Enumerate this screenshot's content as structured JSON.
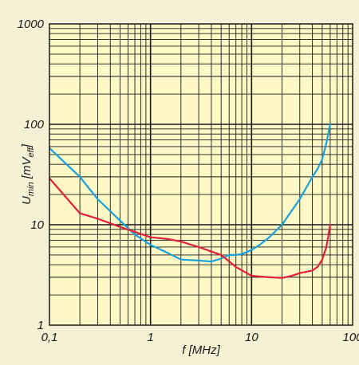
{
  "chart_data": {
    "type": "line",
    "title": "",
    "xlabel": "f [MHz]",
    "ylabel_main": "U",
    "ylabel_sub": "min",
    "ylabel_unit_open": " [mV",
    "ylabel_unit_sub": "eff",
    "ylabel_unit_close": "]",
    "x_scale": "log",
    "y_scale": "log",
    "xlim": [
      0.1,
      100
    ],
    "ylim": [
      1,
      1000
    ],
    "grid": true,
    "x_ticks": [
      {
        "value": 0.1,
        "label": "0,1"
      },
      {
        "value": 1,
        "label": "1"
      },
      {
        "value": 10,
        "label": "10"
      },
      {
        "value": 100,
        "label": "100"
      }
    ],
    "y_ticks": [
      {
        "value": 1,
        "label": "1"
      },
      {
        "value": 10,
        "label": "10"
      },
      {
        "value": 100,
        "label": "100"
      },
      {
        "value": 1000,
        "label": "1000"
      }
    ],
    "series": [
      {
        "color": "#1aa0dd",
        "x": [
          0.1,
          0.2,
          0.3,
          0.5,
          0.7,
          1,
          1.5,
          2,
          3,
          4,
          5,
          6,
          7,
          8,
          10,
          12,
          15,
          20,
          30,
          40,
          45,
          50,
          55,
          60
        ],
        "y": [
          58,
          30,
          18,
          11,
          8,
          6.3,
          5.2,
          4.5,
          4.4,
          4.3,
          4.6,
          5.0,
          5.0,
          5.1,
          5.6,
          6.3,
          7.5,
          10,
          18,
          30,
          36,
          45,
          65,
          100
        ]
      },
      {
        "color": "#e0203a",
        "x": [
          0.1,
          0.2,
          0.3,
          0.5,
          0.7,
          1,
          1.5,
          2,
          3,
          5,
          7,
          10,
          15,
          20,
          25,
          30,
          40,
          45,
          50,
          55,
          60
        ],
        "y": [
          29,
          13,
          11.5,
          9.5,
          8.5,
          7.5,
          7.2,
          6.8,
          6.0,
          5.0,
          3.8,
          3.1,
          3.0,
          2.95,
          3.1,
          3.3,
          3.5,
          3.8,
          4.5,
          6.0,
          10
        ]
      }
    ]
  },
  "colors": {
    "plot_bg": "#fef7c6",
    "page_bg": "#f5f1d4",
    "grid": "#1a1a1a"
  }
}
